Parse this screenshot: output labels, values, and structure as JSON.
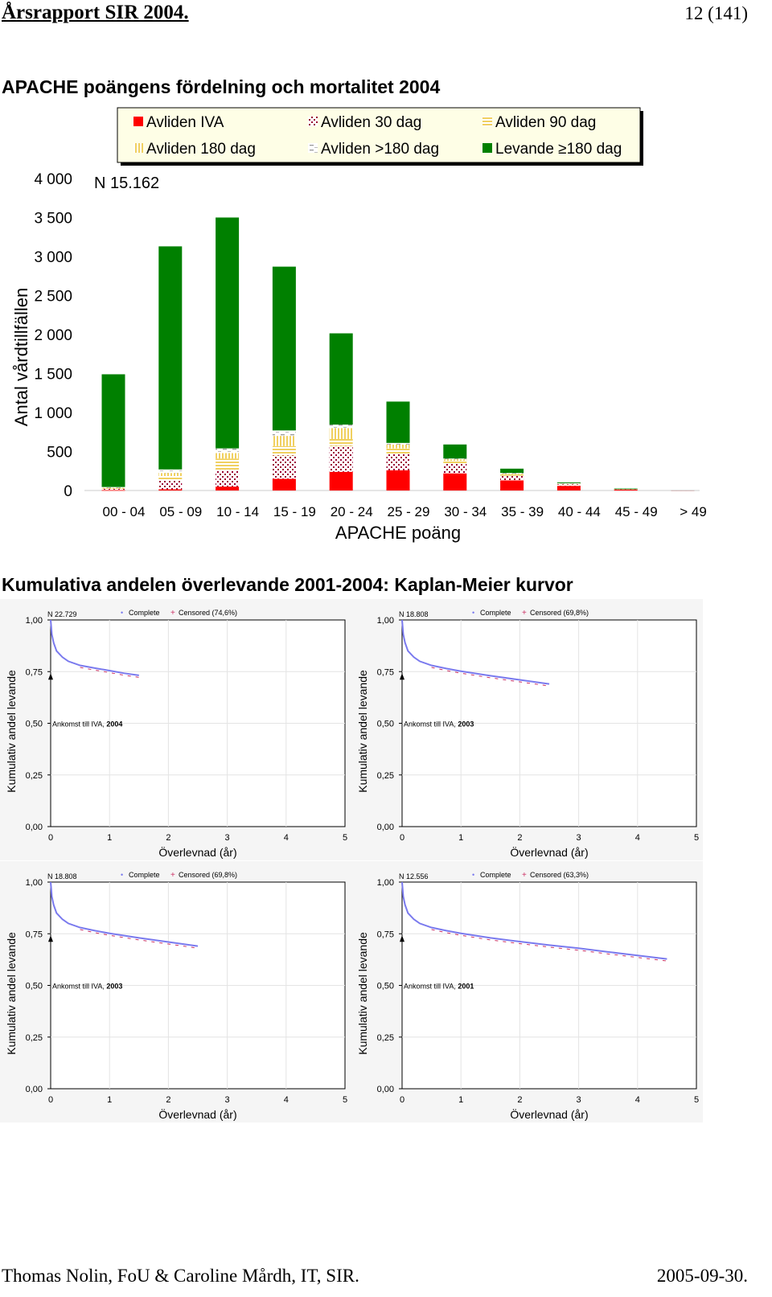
{
  "header": {
    "title": "Årsrapport SIR 2004.",
    "page": "12  (141)"
  },
  "footer": {
    "left": "Thomas Nolin, FoU & Caroline Mårdh, IT, SIR.",
    "right": "2005-09-30."
  },
  "section1_title": "APACHE poängens fördelning och mortalitet 2004",
  "section2_title": "Kumulativa andelen överlevande 2001-2004: Kaplan-Meier kurvor",
  "colors": {
    "red": "#ff0000",
    "green": "#008000",
    "yellow": "#f0d060",
    "maroon": "#990033",
    "km_line": "#7a7aee",
    "km_censored": "#cc3366"
  },
  "chart_data": [
    {
      "type": "bar",
      "stacked": true,
      "annotation": "N  15.162",
      "ylabel": "Antal vårdtillfällen",
      "xlabel": "APACHE poäng",
      "ylim": [
        0,
        4000
      ],
      "yticks": [
        0,
        500,
        1000,
        1500,
        2000,
        2500,
        3000,
        3500,
        4000
      ],
      "ytick_labels": [
        "0",
        "500",
        "1 000",
        "1 500",
        "2 000",
        "2 500",
        "3 000",
        "3 500",
        "4 000"
      ],
      "legend_position": "top",
      "categories": [
        "00 - 04",
        "05 - 09",
        "10 - 14",
        "15 - 19",
        "20 - 24",
        "25 - 29",
        "30 - 34",
        "35 - 39",
        "40 - 44",
        "45 - 49",
        "> 49"
      ],
      "series": [
        {
          "name": "Avliden IVA",
          "pattern": "solid-red",
          "values": [
            5,
            15,
            50,
            150,
            240,
            260,
            220,
            130,
            60,
            15,
            2
          ]
        },
        {
          "name": "Avliden 30 dag",
          "pattern": "dots",
          "values": [
            15,
            110,
            210,
            300,
            330,
            210,
            130,
            60,
            20,
            5,
            1
          ]
        },
        {
          "name": "Avliden 90 dag",
          "pattern": "hlines",
          "values": [
            10,
            60,
            150,
            120,
            90,
            70,
            30,
            20,
            8,
            2,
            1
          ]
        },
        {
          "name": "Avliden 180 dag",
          "pattern": "vlines",
          "values": [
            5,
            40,
            70,
            130,
            140,
            50,
            20,
            10,
            4,
            1,
            0
          ]
        },
        {
          "name": "Avliden >180 dag",
          "pattern": "dashes",
          "values": [
            10,
            45,
            60,
            70,
            45,
            20,
            10,
            5,
            2,
            0,
            0
          ]
        },
        {
          "name": "Levande ≥180 dag",
          "pattern": "solid-green",
          "values": [
            1445,
            2860,
            2960,
            2100,
            1170,
            530,
            180,
            55,
            10,
            2,
            0
          ]
        }
      ]
    },
    {
      "type": "line",
      "n": "N  22.729",
      "cohort": "2004",
      "legend": [
        "Complete",
        "Censored (74,6%)"
      ],
      "annotation": "Ankomst till IVA,",
      "ylabel": "Kumulativ andel levande",
      "xlabel": "Överlevnad (år)",
      "xlim": [
        0,
        5
      ],
      "ylim": [
        0,
        1
      ],
      "xticks": [
        "0",
        "1",
        "2",
        "3",
        "4",
        "5"
      ],
      "yticks": [
        "0,00",
        "0,25",
        "0,50",
        "0,75",
        "1,00"
      ],
      "x": [
        0,
        0.02,
        0.05,
        0.1,
        0.2,
        0.3,
        0.5,
        0.75,
        1.0,
        1.25,
        1.5
      ],
      "y": [
        1.0,
        0.93,
        0.89,
        0.85,
        0.82,
        0.8,
        0.78,
        0.767,
        0.755,
        0.742,
        0.732
      ]
    },
    {
      "type": "line",
      "n": "N 18.808",
      "cohort": "2003",
      "legend": [
        "Complete",
        "Censored (69,8%)"
      ],
      "annotation": "Ankomst till IVA,",
      "ylabel": "Kumulativ andel levande",
      "xlabel": "Överlevnad (år)",
      "xlim": [
        0,
        5
      ],
      "ylim": [
        0,
        1
      ],
      "xticks": [
        "0",
        "1",
        "2",
        "3",
        "4",
        "5"
      ],
      "yticks": [
        "0,00",
        "0,25",
        "0,50",
        "0,75",
        "1,00"
      ],
      "x": [
        0,
        0.02,
        0.05,
        0.1,
        0.2,
        0.3,
        0.5,
        0.75,
        1.0,
        1.5,
        2.0,
        2.5
      ],
      "y": [
        1.0,
        0.93,
        0.89,
        0.85,
        0.82,
        0.8,
        0.78,
        0.765,
        0.752,
        0.73,
        0.71,
        0.69
      ]
    },
    {
      "type": "line",
      "n": "N 18.808",
      "cohort": "2003",
      "legend": [
        "Complete",
        "Censored (69,8%)"
      ],
      "annotation": "Ankomst till IVA,",
      "ylabel": "Kumulativ andel levande",
      "xlabel": "Överlevnad (år)",
      "xlim": [
        0,
        5
      ],
      "ylim": [
        0,
        1
      ],
      "xticks": [
        "0",
        "1",
        "2",
        "3",
        "4",
        "5"
      ],
      "yticks": [
        "0,00",
        "0,25",
        "0,50",
        "0,75",
        "1,00"
      ],
      "x": [
        0,
        0.02,
        0.05,
        0.1,
        0.2,
        0.3,
        0.5,
        0.75,
        1.0,
        1.5,
        2.0,
        2.5
      ],
      "y": [
        1.0,
        0.93,
        0.89,
        0.85,
        0.82,
        0.8,
        0.78,
        0.765,
        0.752,
        0.73,
        0.71,
        0.69
      ]
    },
    {
      "type": "line",
      "n": "N  12.556",
      "cohort": "2001",
      "legend": [
        "Complete",
        "Censored (63,3%)"
      ],
      "annotation": "Ankomst till IVA,",
      "ylabel": "Kumulativ andel levande",
      "xlabel": "Överlevnad (år)",
      "xlim": [
        0,
        5
      ],
      "ylim": [
        0,
        1
      ],
      "xticks": [
        "0",
        "1",
        "2",
        "3",
        "4",
        "5"
      ],
      "yticks": [
        "0,00",
        "0,25",
        "0,50",
        "0,75",
        "1,00"
      ],
      "x": [
        0,
        0.02,
        0.05,
        0.1,
        0.2,
        0.3,
        0.5,
        0.75,
        1.0,
        1.5,
        2.0,
        2.5,
        3.0,
        3.5,
        4.0,
        4.5
      ],
      "y": [
        1.0,
        0.93,
        0.89,
        0.85,
        0.82,
        0.8,
        0.78,
        0.765,
        0.752,
        0.73,
        0.712,
        0.695,
        0.68,
        0.662,
        0.645,
        0.628
      ]
    }
  ]
}
